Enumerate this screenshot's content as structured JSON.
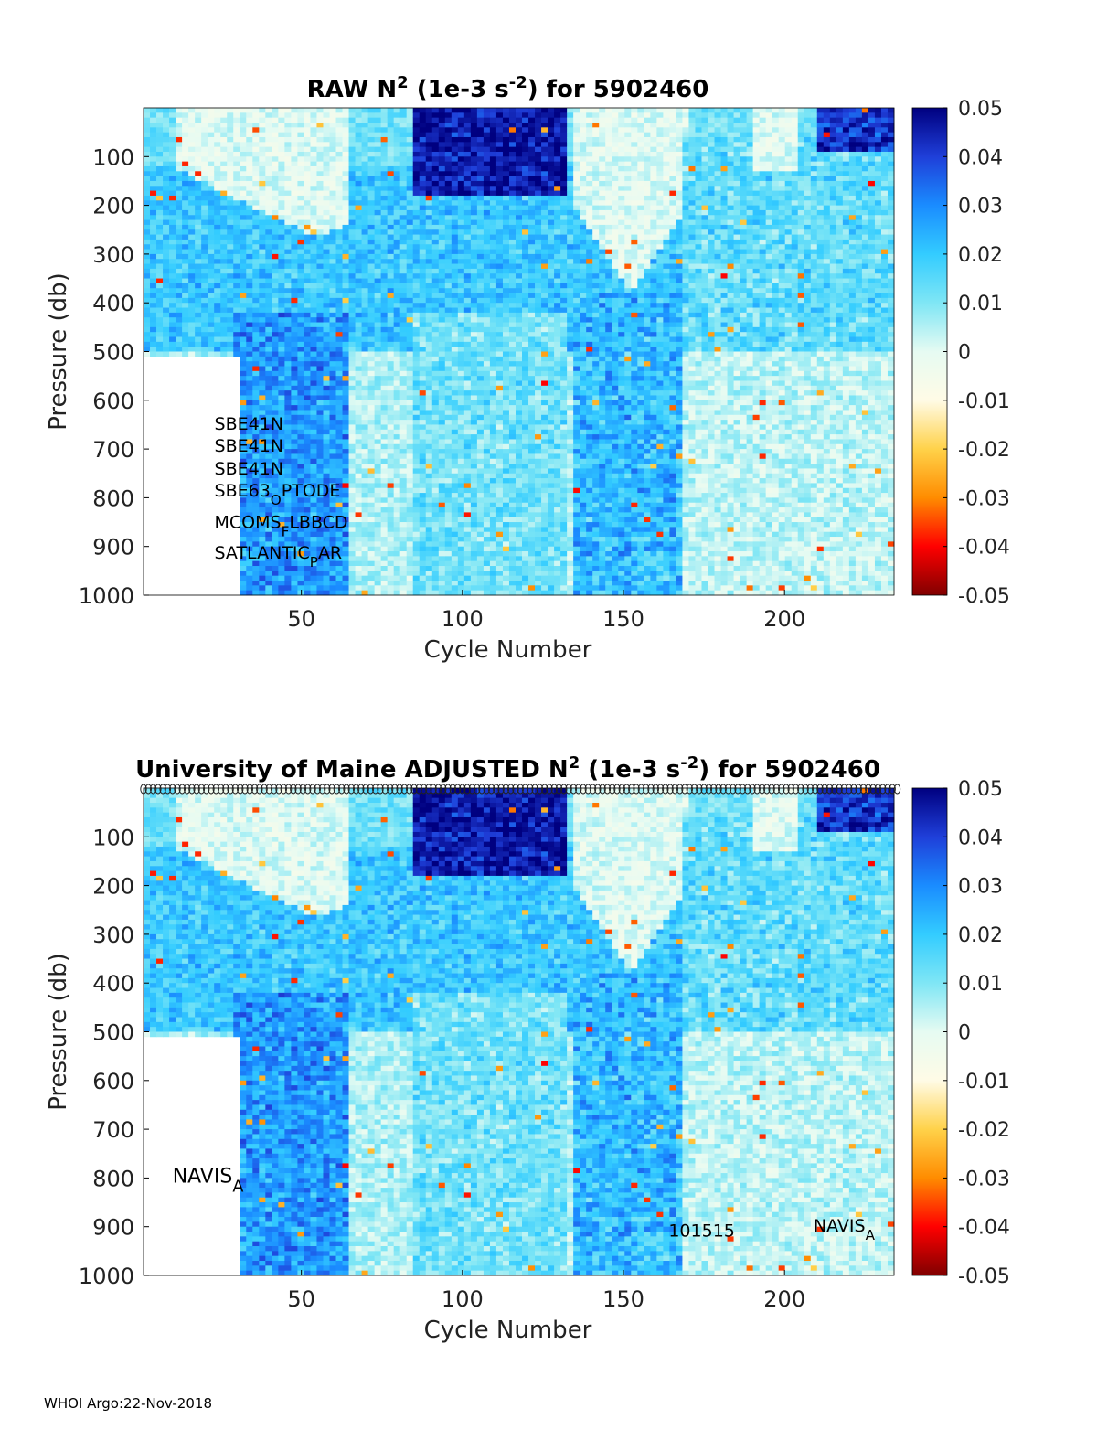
{
  "footer": "WHOI Argo:22-Nov-2018",
  "colors": {
    "colormap": [
      "#800000",
      "#ff0000",
      "#ff8c00",
      "#ffd24a",
      "#fffbe6",
      "#e6fbf2",
      "#7fe6f5",
      "#33ccff",
      "#1a8cff",
      "#1f3fd9",
      "#000080"
    ]
  },
  "chart_data": [
    {
      "type": "heatmap",
      "title_parts": [
        "RAW N",
        "2",
        " (1e-3 s",
        "-2",
        ") for 5902460"
      ],
      "xlabel": "Cycle Number",
      "ylabel": "Pressure (db)",
      "xlim": [
        1,
        234
      ],
      "ylim": [
        1000,
        0
      ],
      "y_reversed": true,
      "xticks": [
        50,
        100,
        150,
        200
      ],
      "yticks": [
        100,
        200,
        300,
        400,
        500,
        600,
        700,
        800,
        900,
        1000
      ],
      "colorbar": {
        "clim": [
          -0.05,
          0.05
        ],
        "ticks": [
          "0.05",
          "0.04",
          "0.03",
          "0.02",
          "0.01",
          "0",
          "-0.01",
          "-0.02",
          "-0.03",
          "-0.04",
          "-0.05"
        ]
      },
      "annotations": [
        {
          "text": "SBE41N",
          "x": 23,
          "y": 660
        },
        {
          "text": "SBE41N",
          "x": 23,
          "y": 705
        },
        {
          "text": "SBE41N",
          "x": 23,
          "y": 752
        },
        {
          "text": "SBE63",
          "sub": "O",
          "rest": "PTODE",
          "x": 23,
          "y": 797
        },
        {
          "text": "MCOMS",
          "sub": "F",
          "rest": "LBBCD",
          "x": 23,
          "y": 862
        },
        {
          "text": "SATLANTIC",
          "sub": "P",
          "rest": "AR",
          "x": 23,
          "y": 925
        }
      ],
      "circle_row": false
    },
    {
      "type": "heatmap",
      "title_parts": [
        "University of Maine  ADJUSTED N",
        "2",
        " (1e-3 s",
        "-2",
        ") for 5902460"
      ],
      "xlabel": "Cycle Number",
      "ylabel": "Pressure (db)",
      "xlim": [
        1,
        234
      ],
      "ylim": [
        1000,
        0
      ],
      "y_reversed": true,
      "xticks": [
        50,
        100,
        150,
        200
      ],
      "yticks": [
        100,
        200,
        300,
        400,
        500,
        600,
        700,
        800,
        900,
        1000
      ],
      "colorbar": {
        "clim": [
          -0.05,
          0.05
        ],
        "ticks": [
          "0.05",
          "0.04",
          "0.03",
          "0.02",
          "0.01",
          "0",
          "-0.01",
          "-0.02",
          "-0.03",
          "-0.04",
          "-0.05"
        ]
      },
      "annotations": [
        {
          "text": "NAVIS",
          "sub": "A",
          "rest": "",
          "x": 10,
          "y": 810,
          "large": true
        },
        {
          "text": "101515",
          "x": 164,
          "y": 920
        },
        {
          "text": "NAVIS",
          "sub": "A",
          "rest": "",
          "x": 209,
          "y": 910
        }
      ],
      "circle_row": true
    }
  ]
}
